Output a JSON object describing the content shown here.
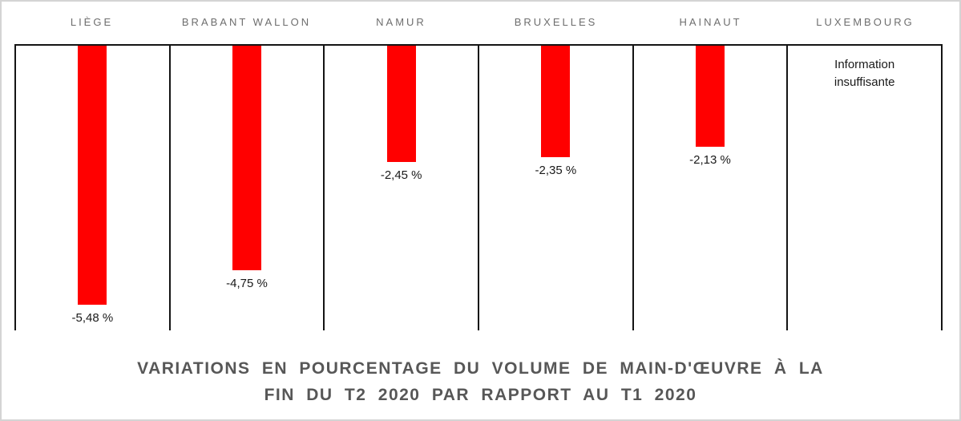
{
  "chart_data": {
    "type": "bar",
    "categories": [
      "LIÈGE",
      "BRABANT WALLON",
      "NAMUR",
      "BRUXELLES",
      "HAINAUT",
      "LUXEMBOURG"
    ],
    "values": [
      -5.48,
      -4.75,
      -2.45,
      -2.35,
      -2.13,
      null
    ],
    "labels": [
      "-5,48 %",
      "-4,75 %",
      "-2,45 %",
      "-2,35 %",
      "-2,13 %",
      ""
    ],
    "no_data_note": "Information insuffisante",
    "title": "VARIATIONS EN POURCENTAGE DU VOLUME DE MAIN-D'ŒUVRE À LA FIN DU T2 2020 PAR RAPPORT AU T1 2020",
    "title_lines": [
      "VARIATIONS EN POURCENTAGE DU VOLUME DE MAIN-D'ŒUVRE À LA",
      "FIN DU T2 2020 PAR RAPPORT AU T1 2020"
    ],
    "bar_color": "#ff0000",
    "ylabel": "",
    "xlabel": "",
    "ylim": [
      -6,
      0
    ],
    "baseline": "top",
    "grid": false,
    "legend": false
  }
}
